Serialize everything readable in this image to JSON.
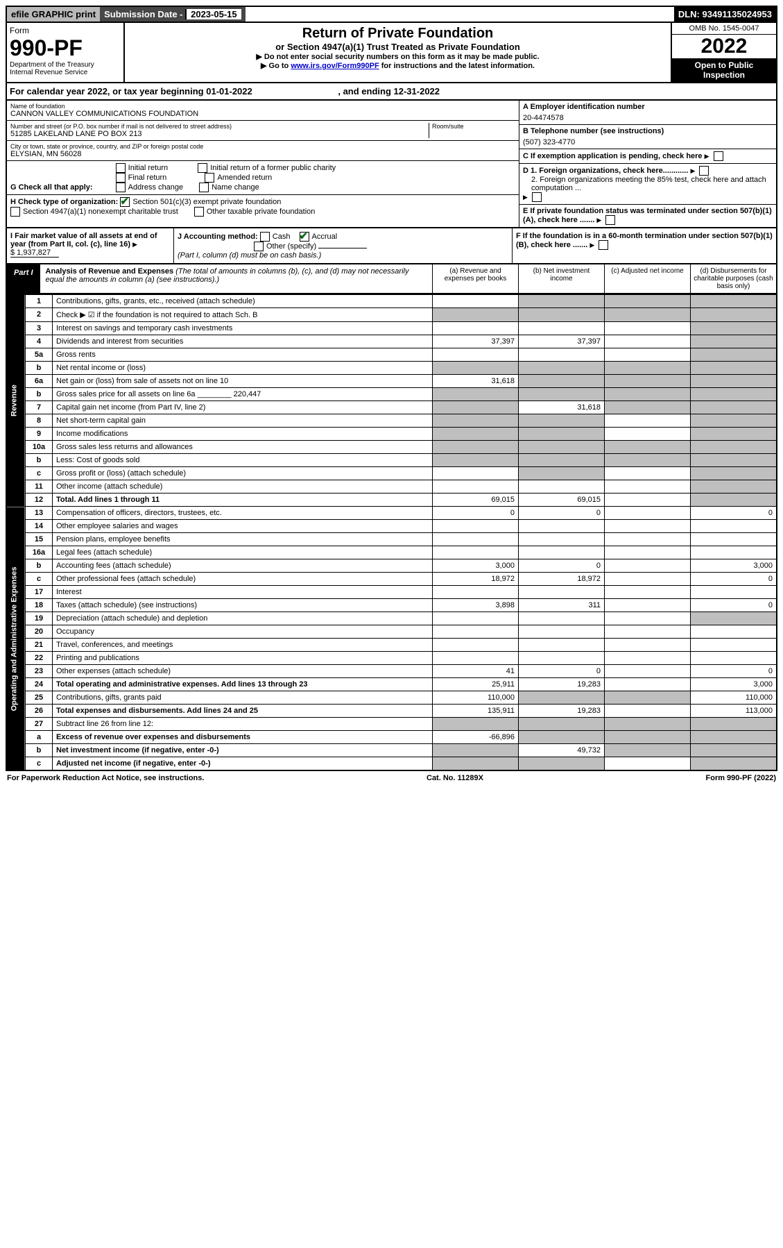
{
  "top": {
    "efile": "efile GRAPHIC print",
    "sub_label": "Submission Date - ",
    "sub_date": "2023-05-15",
    "dln": "DLN: 93491135024953"
  },
  "header": {
    "form_word": "Form",
    "form_no": "990-PF",
    "dept": "Department of the Treasury\nInternal Revenue Service",
    "title": "Return of Private Foundation",
    "subtitle": "or Section 4947(a)(1) Trust Treated as Private Foundation",
    "instr1": "▶ Do not enter social security numbers on this form as it may be made public.",
    "instr2_pre": "▶ Go to ",
    "instr2_link": "www.irs.gov/Form990PF",
    "instr2_post": " for instructions and the latest information.",
    "omb": "OMB No. 1545-0047",
    "year": "2022",
    "open": "Open to Public Inspection"
  },
  "cal_year": {
    "pre": "For calendar year 2022, or tax year beginning ",
    "begin": "01-01-2022",
    "mid": " , and ending ",
    "end": "12-31-2022"
  },
  "entity": {
    "name_label": "Name of foundation",
    "name": "CANNON VALLEY COMMUNICATIONS FOUNDATION",
    "addr_label": "Number and street (or P.O. box number if mail is not delivered to street address)",
    "addr": "51285 LAKELAND LANE PO BOX 213",
    "room_label": "Room/suite",
    "city_label": "City or town, state or province, country, and ZIP or foreign postal code",
    "city": "ELYSIAN, MN  56028",
    "a_label": "A Employer identification number",
    "a_val": "20-4474578",
    "b_label": "B Telephone number (see instructions)",
    "b_val": "(507) 323-4770",
    "c_label": "C If exemption application is pending, check here",
    "d1": "D 1. Foreign organizations, check here............",
    "d2": "2. Foreign organizations meeting the 85% test, check here and attach computation ...",
    "e_label": "E  If private foundation status was terminated under section 507(b)(1)(A), check here .......",
    "f_label": "F  If the foundation is in a 60-month termination under section 507(b)(1)(B), check here ......."
  },
  "g": {
    "label": "G Check all that apply:",
    "opts": [
      "Initial return",
      "Final return",
      "Address change",
      "Initial return of a former public charity",
      "Amended return",
      "Name change"
    ]
  },
  "h": {
    "label": "H Check type of organization:",
    "opt1": "Section 501(c)(3) exempt private foundation",
    "opt2": "Section 4947(a)(1) nonexempt charitable trust",
    "opt3": "Other taxable private foundation"
  },
  "i": {
    "label": "I Fair market value of all assets at end of year (from Part II, col. (c), line 16)",
    "val": "$  1,937,827"
  },
  "j": {
    "label": "J Accounting method:",
    "cash": "Cash",
    "accrual": "Accrual",
    "other": "Other (specify)",
    "note": "(Part I, column (d) must be on cash basis.)"
  },
  "part1": {
    "label": "Part I",
    "title": "Analysis of Revenue and Expenses",
    "title_note": "(The total of amounts in columns (b), (c), and (d) may not necessarily equal the amounts in column (a) (see instructions).)",
    "col_a": "(a)   Revenue and expenses per books",
    "col_b": "(b)   Net investment income",
    "col_c": "(c)   Adjusted net income",
    "col_d": "(d)   Disbursements for charitable purposes (cash basis only)"
  },
  "sections": {
    "revenue": "Revenue",
    "opex": "Operating and Administrative Expenses"
  },
  "lines": [
    {
      "no": "1",
      "desc": "Contributions, gifts, grants, etc., received (attach schedule)",
      "a": "",
      "b": "s",
      "c": "s",
      "d": "s"
    },
    {
      "no": "2",
      "desc": "Check ▶ ☑ if the foundation is not required to attach Sch. B",
      "a": "s",
      "b": "s",
      "c": "s",
      "d": "s"
    },
    {
      "no": "3",
      "desc": "Interest on savings and temporary cash investments",
      "a": "",
      "b": "",
      "c": "",
      "d": "s"
    },
    {
      "no": "4",
      "desc": "Dividends and interest from securities",
      "a": "37,397",
      "b": "37,397",
      "c": "",
      "d": "s"
    },
    {
      "no": "5a",
      "desc": "Gross rents",
      "a": "",
      "b": "",
      "c": "",
      "d": "s"
    },
    {
      "no": "b",
      "desc": "Net rental income or (loss)",
      "a": "s",
      "b": "s",
      "c": "s",
      "d": "s"
    },
    {
      "no": "6a",
      "desc": "Net gain or (loss) from sale of assets not on line 10",
      "a": "31,618",
      "b": "s",
      "c": "s",
      "d": "s"
    },
    {
      "no": "b",
      "desc": "Gross sales price for all assets on line 6a ________ 220,447",
      "a": "s",
      "b": "s",
      "c": "s",
      "d": "s"
    },
    {
      "no": "7",
      "desc": "Capital gain net income (from Part IV, line 2)",
      "a": "s",
      "b": "31,618",
      "c": "s",
      "d": "s"
    },
    {
      "no": "8",
      "desc": "Net short-term capital gain",
      "a": "s",
      "b": "s",
      "c": "",
      "d": "s"
    },
    {
      "no": "9",
      "desc": "Income modifications",
      "a": "s",
      "b": "s",
      "c": "",
      "d": "s"
    },
    {
      "no": "10a",
      "desc": "Gross sales less returns and allowances",
      "a": "s",
      "b": "s",
      "c": "s",
      "d": "s"
    },
    {
      "no": "b",
      "desc": "Less: Cost of goods sold",
      "a": "s",
      "b": "s",
      "c": "s",
      "d": "s"
    },
    {
      "no": "c",
      "desc": "Gross profit or (loss) (attach schedule)",
      "a": "",
      "b": "s",
      "c": "",
      "d": "s"
    },
    {
      "no": "11",
      "desc": "Other income (attach schedule)",
      "a": "",
      "b": "",
      "c": "",
      "d": "s"
    },
    {
      "no": "12",
      "desc": "Total. Add lines 1 through 11",
      "bold": true,
      "a": "69,015",
      "b": "69,015",
      "c": "",
      "d": "s"
    }
  ],
  "exp_lines": [
    {
      "no": "13",
      "desc": "Compensation of officers, directors, trustees, etc.",
      "a": "0",
      "b": "0",
      "c": "",
      "d": "0"
    },
    {
      "no": "14",
      "desc": "Other employee salaries and wages",
      "a": "",
      "b": "",
      "c": "",
      "d": ""
    },
    {
      "no": "15",
      "desc": "Pension plans, employee benefits",
      "a": "",
      "b": "",
      "c": "",
      "d": ""
    },
    {
      "no": "16a",
      "desc": "Legal fees (attach schedule)",
      "a": "",
      "b": "",
      "c": "",
      "d": ""
    },
    {
      "no": "b",
      "desc": "Accounting fees (attach schedule)",
      "a": "3,000",
      "b": "0",
      "c": "",
      "d": "3,000"
    },
    {
      "no": "c",
      "desc": "Other professional fees (attach schedule)",
      "a": "18,972",
      "b": "18,972",
      "c": "",
      "d": "0"
    },
    {
      "no": "17",
      "desc": "Interest",
      "a": "",
      "b": "",
      "c": "",
      "d": ""
    },
    {
      "no": "18",
      "desc": "Taxes (attach schedule) (see instructions)",
      "a": "3,898",
      "b": "311",
      "c": "",
      "d": "0"
    },
    {
      "no": "19",
      "desc": "Depreciation (attach schedule) and depletion",
      "a": "",
      "b": "",
      "c": "",
      "d": "s"
    },
    {
      "no": "20",
      "desc": "Occupancy",
      "a": "",
      "b": "",
      "c": "",
      "d": ""
    },
    {
      "no": "21",
      "desc": "Travel, conferences, and meetings",
      "a": "",
      "b": "",
      "c": "",
      "d": ""
    },
    {
      "no": "22",
      "desc": "Printing and publications",
      "a": "",
      "b": "",
      "c": "",
      "d": ""
    },
    {
      "no": "23",
      "desc": "Other expenses (attach schedule)",
      "a": "41",
      "b": "0",
      "c": "",
      "d": "0"
    },
    {
      "no": "24",
      "desc": "Total operating and administrative expenses. Add lines 13 through 23",
      "bold": true,
      "a": "25,911",
      "b": "19,283",
      "c": "",
      "d": "3,000"
    },
    {
      "no": "25",
      "desc": "Contributions, gifts, grants paid",
      "a": "110,000",
      "b": "s",
      "c": "s",
      "d": "110,000"
    },
    {
      "no": "26",
      "desc": "Total expenses and disbursements. Add lines 24 and 25",
      "bold": true,
      "a": "135,911",
      "b": "19,283",
      "c": "",
      "d": "113,000"
    },
    {
      "no": "27",
      "desc": "Subtract line 26 from line 12:",
      "a": "s",
      "b": "s",
      "c": "s",
      "d": "s"
    },
    {
      "no": "a",
      "desc": "Excess of revenue over expenses and disbursements",
      "bold": true,
      "a": "-66,896",
      "b": "s",
      "c": "s",
      "d": "s"
    },
    {
      "no": "b",
      "desc": "Net investment income (if negative, enter -0-)",
      "bold": true,
      "a": "s",
      "b": "49,732",
      "c": "s",
      "d": "s"
    },
    {
      "no": "c",
      "desc": "Adjusted net income (if negative, enter -0-)",
      "bold": true,
      "a": "s",
      "b": "s",
      "c": "",
      "d": "s"
    }
  ],
  "footer": {
    "left": "For Paperwork Reduction Act Notice, see instructions.",
    "mid": "Cat. No. 11289X",
    "right": "Form 990-PF (2022)"
  },
  "colors": {
    "shade": "#bfbfbf",
    "black": "#000000",
    "link": "#0000cc"
  }
}
